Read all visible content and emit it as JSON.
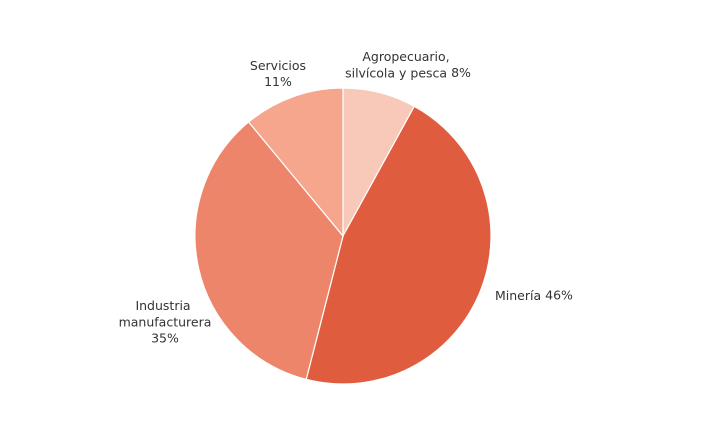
{
  "chart_data": {
    "type": "pie",
    "categories": [
      "Agropecuario, silvícola y pesca",
      "Minería",
      "Industria manufacturera",
      "Servicios"
    ],
    "values": [
      8,
      46,
      35,
      11
    ],
    "value_labels": [
      "8%",
      "46%",
      "35%",
      "11%"
    ],
    "colors": [
      "#f8c9b8",
      "#e05c3e",
      "#ec8569",
      "#f5a68d"
    ]
  }
}
